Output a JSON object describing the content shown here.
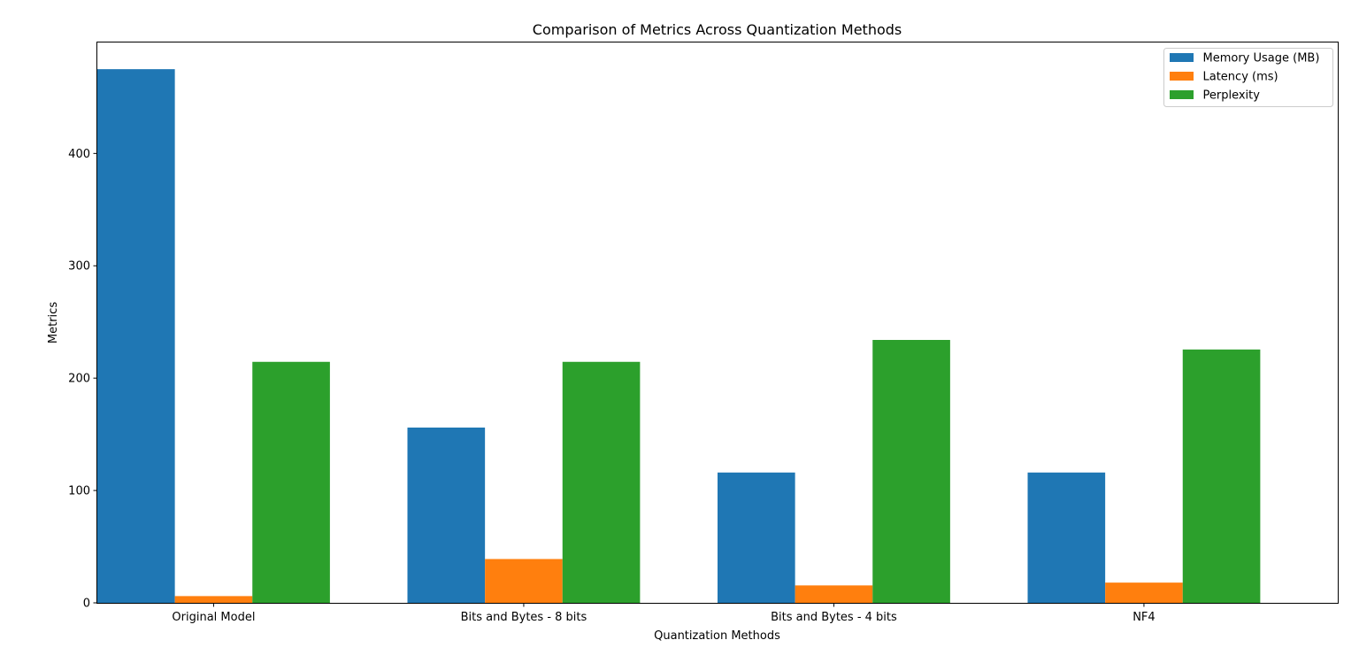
{
  "chart_data": {
    "type": "bar",
    "title": "Comparison of Metrics Across Quantization Methods",
    "xlabel": "Quantization Methods",
    "ylabel": "Metrics",
    "categories": [
      "Original Model",
      "Bits and Bytes - 8 bits",
      "Bits and Bytes - 4 bits",
      "NF4"
    ],
    "series": [
      {
        "name": "Memory Usage (MB)",
        "color": "#1f77b4",
        "values": [
          475,
          156,
          116,
          116
        ]
      },
      {
        "name": "Latency (ms)",
        "color": "#ff7f0e",
        "values": [
          6,
          39,
          15.5,
          18
        ]
      },
      {
        "name": "Perplexity",
        "color": "#2ca02c",
        "values": [
          214.5,
          214.5,
          234,
          225.5
        ]
      }
    ],
    "ylim": [
      0,
      498.75
    ],
    "yticks": [
      0,
      100,
      200,
      300,
      400
    ],
    "grid": false,
    "legend_position": "top-right"
  }
}
